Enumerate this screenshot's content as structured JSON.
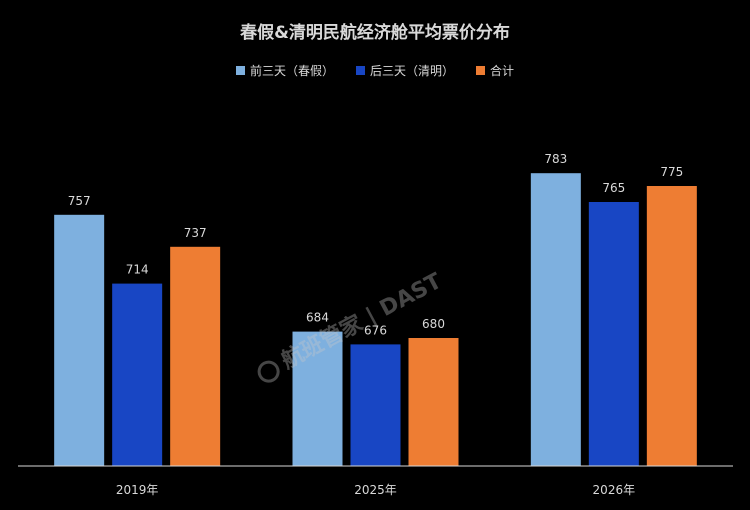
{
  "chart_data": {
    "type": "bar",
    "title": "春假&清明民航经济舱平均票价分布",
    "categories": [
      "2019年",
      "2025年",
      "2026年"
    ],
    "series": [
      {
        "name": "前三天（春假）",
        "color": "#7eb0df",
        "values": [
          757,
          684,
          783
        ]
      },
      {
        "name": "后三天（清明）",
        "color": "#1846c4",
        "values": [
          714,
          676,
          765
        ]
      },
      {
        "name": "合计",
        "color": "#ee7d33",
        "values": [
          737,
          680,
          775
        ]
      }
    ],
    "ylim": [
      600,
      800
    ],
    "grid": false,
    "legend_position": "top-center",
    "xlabel": "",
    "ylabel": ""
  },
  "watermark": {
    "text": "航班管家 | DAST",
    "icon": "globe-icon"
  },
  "colors": {
    "background": "#000000",
    "text": "#d9d9d9",
    "axis": "#d9d9d9"
  }
}
